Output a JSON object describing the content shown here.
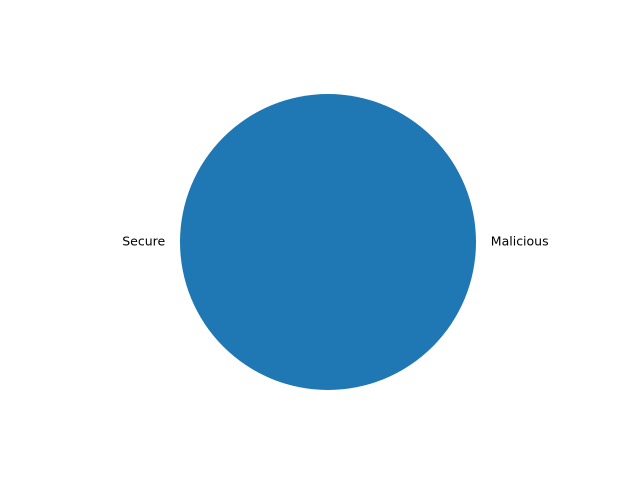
{
  "chart_data": {
    "type": "pie",
    "labels": [
      "Malicious",
      "Secure"
    ],
    "values": [
      0,
      1
    ],
    "colors": [
      "#ff7f0e",
      "#1f77b4"
    ],
    "title": "",
    "legend": false
  }
}
